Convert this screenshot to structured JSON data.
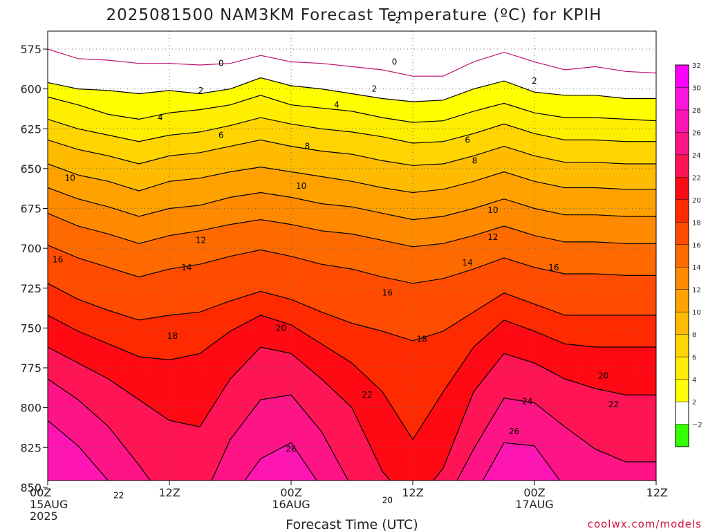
{
  "chart_data": {
    "type": "heatmap",
    "title": "2025081500 NAM3KM Forecast Temperature (ºC) for KPIH",
    "xlabel": "Forecast Time (UTC)",
    "ylabel": "",
    "x_ticks": [
      {
        "hours": 0,
        "lines": [
          "00Z",
          "15AUG",
          "2025"
        ]
      },
      {
        "hours": 12,
        "lines": [
          "12Z"
        ]
      },
      {
        "hours": 24,
        "lines": [
          "00Z",
          "16AUG"
        ]
      },
      {
        "hours": 36,
        "lines": [
          "12Z"
        ]
      },
      {
        "hours": 48,
        "lines": [
          "00Z",
          "17AUG"
        ]
      },
      {
        "hours": 60,
        "lines": [
          "12Z"
        ]
      }
    ],
    "xlim_hours": [
      0,
      60
    ],
    "y_ticks": [
      575,
      600,
      625,
      650,
      675,
      700,
      725,
      750,
      775,
      800,
      825,
      850
    ],
    "ylim_hpa": [
      555,
      862
    ],
    "grid": true,
    "colorbar": {
      "levels": [
        -2,
        2,
        4,
        6,
        8,
        10,
        12,
        14,
        16,
        18,
        20,
        22,
        24,
        26,
        28,
        30,
        32
      ],
      "tick_labels": [
        "−2",
        "2",
        "4",
        "6",
        "8",
        "10",
        "12",
        "14",
        "16",
        "18",
        "20",
        "22",
        "24",
        "26",
        "28",
        "30",
        "32"
      ],
      "colors": [
        "#33ff00",
        "#ffffff",
        "#ffff00",
        "#ffee00",
        "#ffd400",
        "#ffbb00",
        "#ffa200",
        "#ff8a00",
        "#ff6a00",
        "#ff4c00",
        "#ff2a00",
        "#ff0a14",
        "#ff1456",
        "#ff1487",
        "#ff14b4",
        "#ff14dc",
        "#ff00ff"
      ]
    },
    "isotherms": [
      {
        "value": -2,
        "p": [
          558,
          558,
          559,
          558,
          558,
          559,
          559,
          560,
          560,
          559,
          558,
          558,
          558,
          558,
          559,
          560,
          560,
          559,
          558,
          558,
          559
        ]
      },
      {
        "value": 0,
        "p": [
          575,
          581,
          582,
          584,
          584,
          585,
          584,
          579,
          583,
          584,
          586,
          588,
          592,
          592,
          583,
          577,
          583,
          588,
          586,
          589,
          590
        ]
      },
      {
        "value": 2,
        "p": [
          596,
          600,
          601,
          603,
          601,
          603,
          600,
          593,
          598,
          600,
          603,
          606,
          608,
          607,
          600,
          595,
          602,
          604,
          604,
          606,
          606
        ]
      },
      {
        "value": 4,
        "p": [
          605,
          610,
          616,
          619,
          615,
          613,
          610,
          604,
          610,
          612,
          614,
          618,
          621,
          620,
          614,
          609,
          615,
          618,
          618,
          619,
          620
        ]
      },
      {
        "value": 6,
        "p": [
          619,
          625,
          629,
          633,
          629,
          627,
          623,
          618,
          622,
          625,
          627,
          630,
          634,
          633,
          628,
          622,
          628,
          632,
          632,
          633,
          633
        ]
      },
      {
        "value": 8,
        "p": [
          632,
          638,
          642,
          647,
          642,
          640,
          636,
          632,
          636,
          639,
          641,
          645,
          648,
          647,
          642,
          636,
          642,
          646,
          646,
          647,
          647
        ]
      },
      {
        "value": 10,
        "p": [
          647,
          654,
          658,
          664,
          658,
          656,
          652,
          649,
          652,
          655,
          658,
          662,
          665,
          663,
          658,
          652,
          658,
          662,
          662,
          663,
          663
        ]
      },
      {
        "value": 12,
        "p": [
          662,
          669,
          674,
          680,
          675,
          673,
          668,
          665,
          668,
          672,
          674,
          678,
          682,
          680,
          675,
          669,
          675,
          679,
          679,
          680,
          680
        ]
      },
      {
        "value": 14,
        "p": [
          678,
          686,
          691,
          697,
          692,
          689,
          685,
          682,
          685,
          689,
          691,
          695,
          699,
          697,
          692,
          686,
          692,
          696,
          696,
          697,
          697
        ]
      },
      {
        "value": 16,
        "p": [
          698,
          706,
          712,
          718,
          713,
          710,
          705,
          701,
          705,
          710,
          713,
          718,
          722,
          719,
          713,
          706,
          712,
          716,
          716,
          717,
          717
        ]
      },
      {
        "value": 18,
        "p": [
          722,
          732,
          739,
          745,
          742,
          740,
          733,
          727,
          732,
          740,
          747,
          752,
          758,
          752,
          740,
          728,
          735,
          742,
          742,
          742,
          742
        ]
      },
      {
        "value": 20,
        "p": [
          742,
          752,
          760,
          768,
          770,
          766,
          752,
          742,
          748,
          760,
          772,
          790,
          820,
          790,
          762,
          745,
          752,
          760,
          762,
          762,
          762
        ]
      },
      {
        "value": 22,
        "p": [
          762,
          772,
          782,
          795,
          808,
          812,
          782,
          762,
          766,
          782,
          800,
          840,
          862,
          838,
          790,
          766,
          772,
          782,
          788,
          792,
          792
        ]
      },
      {
        "value": 24,
        "p": [
          782,
          795,
          812,
          836,
          862,
          862,
          820,
          795,
          792,
          815,
          850,
          862,
          862,
          862,
          826,
          794,
          797,
          812,
          826,
          834,
          834
        ]
      },
      {
        "value": 26,
        "p": [
          808,
          824,
          846,
          862,
          862,
          862,
          858,
          832,
          822,
          850,
          862,
          862,
          862,
          862,
          856,
          822,
          824,
          850,
          862,
          862,
          862
        ]
      }
    ],
    "contour_labels": [
      {
        "text": "−2",
        "h": 34.2,
        "p": 557
      },
      {
        "text": "0",
        "h": 17.1,
        "p": 584
      },
      {
        "text": "0",
        "h": 34.2,
        "p": 583
      },
      {
        "text": "2",
        "h": 15.1,
        "p": 601
      },
      {
        "text": "2",
        "h": 32.2,
        "p": 600
      },
      {
        "text": "2",
        "h": 48.0,
        "p": 595
      },
      {
        "text": "4",
        "h": 11.1,
        "p": 618
      },
      {
        "text": "4",
        "h": 28.5,
        "p": 610
      },
      {
        "text": "6",
        "h": 17.1,
        "p": 629
      },
      {
        "text": "6",
        "h": 41.4,
        "p": 632
      },
      {
        "text": "8",
        "h": 25.6,
        "p": 636
      },
      {
        "text": "8",
        "h": 42.1,
        "p": 645
      },
      {
        "text": "10",
        "h": 2.2,
        "p": 656
      },
      {
        "text": "10",
        "h": 25.0,
        "p": 661
      },
      {
        "text": "10",
        "h": 43.9,
        "p": 676
      },
      {
        "text": "12",
        "h": 15.1,
        "p": 695
      },
      {
        "text": "12",
        "h": 43.9,
        "p": 693
      },
      {
        "text": "14",
        "h": 13.7,
        "p": 712
      },
      {
        "text": "14",
        "h": 41.4,
        "p": 709
      },
      {
        "text": "16",
        "h": 1.0,
        "p": 707
      },
      {
        "text": "16",
        "h": 33.5,
        "p": 728
      },
      {
        "text": "16",
        "h": 49.9,
        "p": 712
      },
      {
        "text": "18",
        "h": 12.3,
        "p": 755
      },
      {
        "text": "18",
        "h": 36.9,
        "p": 757
      },
      {
        "text": "20",
        "h": 23.0,
        "p": 750
      },
      {
        "text": "20",
        "h": 54.8,
        "p": 780
      },
      {
        "text": "20",
        "h": 33.5,
        "p": 858
      },
      {
        "text": "22",
        "h": 31.5,
        "p": 792
      },
      {
        "text": "22",
        "h": 55.8,
        "p": 798
      },
      {
        "text": "22",
        "h": 7.0,
        "p": 855
      },
      {
        "text": "24",
        "h": 47.3,
        "p": 796
      },
      {
        "text": "26",
        "h": 46.0,
        "p": 815
      },
      {
        "text": "26",
        "h": 24.0,
        "p": 826
      }
    ]
  },
  "credit": "coolwx.com/models",
  "colors": {
    "terrain": "#a0522d",
    "line": "#000000",
    "freezing_line": "#c0106e"
  }
}
